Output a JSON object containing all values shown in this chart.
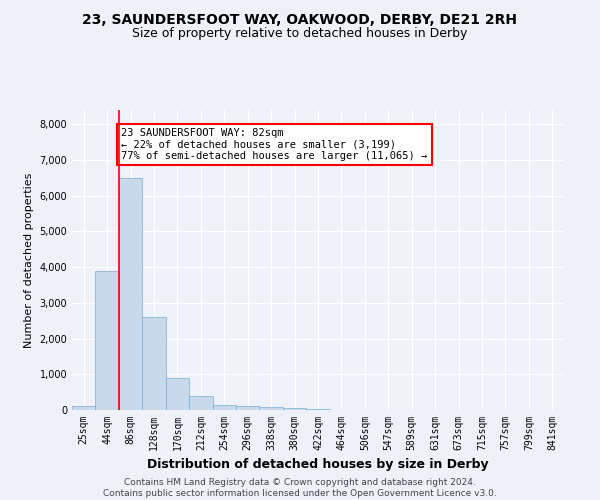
{
  "title_line1": "23, SAUNDERSFOOT WAY, OAKWOOD, DERBY, DE21 2RH",
  "title_line2": "Size of property relative to detached houses in Derby",
  "xlabel": "Distribution of detached houses by size in Derby",
  "ylabel": "Number of detached properties",
  "bar_color": "#c9d9ec",
  "bar_edge_color": "#7aafd4",
  "categories": [
    "25sqm",
    "44sqm",
    "86sqm",
    "128sqm",
    "170sqm",
    "212sqm",
    "254sqm",
    "296sqm",
    "338sqm",
    "380sqm",
    "422sqm",
    "464sqm",
    "506sqm",
    "547sqm",
    "589sqm",
    "631sqm",
    "673sqm",
    "715sqm",
    "757sqm",
    "799sqm",
    "841sqm"
  ],
  "values": [
    100,
    3900,
    6500,
    2600,
    900,
    400,
    150,
    100,
    75,
    50,
    30,
    10,
    5,
    3,
    2,
    1,
    1,
    1,
    0,
    0,
    0
  ],
  "annotation_line1": "23 SAUNDERSFOOT WAY: 82sqm",
  "annotation_line2": "← 22% of detached houses are smaller (3,199)",
  "annotation_line3": "77% of semi-detached houses are larger (11,065) →",
  "vline_bin": 1.5,
  "ylim": [
    0,
    8400
  ],
  "yticks": [
    0,
    1000,
    2000,
    3000,
    4000,
    5000,
    6000,
    7000,
    8000
  ],
  "footer_line1": "Contains HM Land Registry data © Crown copyright and database right 2024.",
  "footer_line2": "Contains public sector information licensed under the Open Government Licence v3.0.",
  "background_color": "#eef2f8",
  "grid_color": "#ffffff",
  "title_fontsize": 10,
  "subtitle_fontsize": 9,
  "xlabel_fontsize": 9,
  "ylabel_fontsize": 8,
  "tick_fontsize": 7,
  "annotation_fontsize": 7.5,
  "footer_fontsize": 6.5
}
